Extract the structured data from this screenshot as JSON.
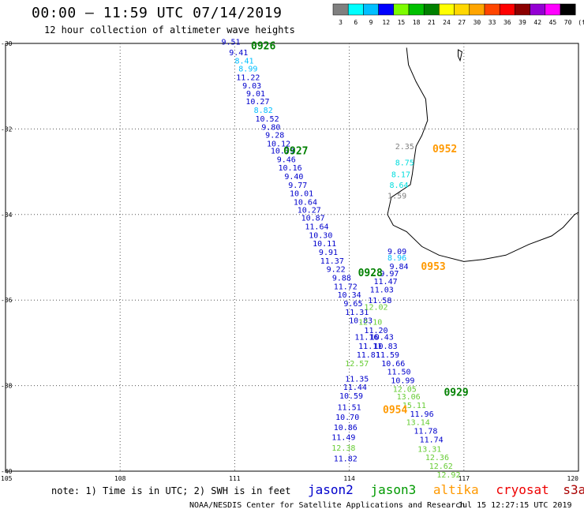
{
  "header": {
    "title": "00:00 – 11:59 UTC 07/14/2019",
    "subtitle": "12 hour collection of altimeter wave heights"
  },
  "scale": {
    "unit": "(ft)",
    "ticks": [
      "3",
      "6",
      "9",
      "12",
      "15",
      "18",
      "21",
      "24",
      "27",
      "30",
      "33",
      "36",
      "39",
      "42",
      "45",
      "70"
    ],
    "colors": [
      "#808080",
      "#00ffff",
      "#00bfff",
      "#0000ff",
      "#7cfc00",
      "#00c000",
      "#008000",
      "#ffff00",
      "#ffd700",
      "#ffa500",
      "#ff4500",
      "#ff0000",
      "#8b0000",
      "#9400d3",
      "#ff00ff",
      "#000000"
    ]
  },
  "axes": {
    "x_ticks": [
      "105",
      "108",
      "111",
      "114",
      "117",
      "120"
    ],
    "y_ticks": [
      "-30",
      "-32",
      "-34",
      "-36",
      "-38",
      "-40"
    ]
  },
  "footer": {
    "note": "note: 1) Time is in UTC; 2) SWH is in feet",
    "credit": "NOAA/NESDIS Center for Satellite Applications and Research",
    "timestamp": "Jul 15 12:27:15 UTC 2019"
  },
  "satellites": [
    {
      "name": "jason2",
      "color": "#0000cc"
    },
    {
      "name": "jason3",
      "color": "#009900"
    },
    {
      "name": "altika",
      "color": "#ff9900"
    },
    {
      "name": "cryosat",
      "color": "#ee0000"
    },
    {
      "name": "s3a",
      "color": "#aa0000"
    }
  ],
  "time_labels": [
    {
      "text": "0926",
      "lon": 111.75,
      "lat": -30.05,
      "color": "#008000"
    },
    {
      "text": "0927",
      "lon": 112.6,
      "lat": -32.5,
      "color": "#008000"
    },
    {
      "text": "0952",
      "lon": 116.5,
      "lat": -32.45,
      "color": "#ff9900"
    },
    {
      "text": "0928",
      "lon": 114.55,
      "lat": -35.35,
      "color": "#008000"
    },
    {
      "text": "0953",
      "lon": 116.2,
      "lat": -35.2,
      "color": "#ff9900"
    },
    {
      "text": "0929",
      "lon": 116.8,
      "lat": -38.15,
      "color": "#008000"
    },
    {
      "text": "0954",
      "lon": 115.2,
      "lat": -38.55,
      "color": "#ff9900"
    }
  ],
  "map_data": {
    "extent": {
      "lon": [
        105,
        120
      ],
      "lat": [
        -40,
        -30
      ]
    },
    "observations": [
      {
        "lon": 110.9,
        "lat": -29.95,
        "v": "9.51",
        "c": "#0000cc"
      },
      {
        "lon": 111.1,
        "lat": -30.2,
        "v": "9.41",
        "c": "#0000cc"
      },
      {
        "lon": 111.25,
        "lat": -30.4,
        "v": "8.41",
        "c": "#00bfff"
      },
      {
        "lon": 111.35,
        "lat": -30.58,
        "v": "8.99",
        "c": "#00bfff"
      },
      {
        "lon": 111.35,
        "lat": -30.78,
        "v": "11.22",
        "c": "#0000cc"
      },
      {
        "lon": 111.45,
        "lat": -30.98,
        "v": "9.03",
        "c": "#0000cc"
      },
      {
        "lon": 111.55,
        "lat": -31.16,
        "v": "9.01",
        "c": "#0000cc"
      },
      {
        "lon": 111.6,
        "lat": -31.35,
        "v": "10.27",
        "c": "#0000cc"
      },
      {
        "lon": 111.75,
        "lat": -31.55,
        "v": "8.82",
        "c": "#00bfff"
      },
      {
        "lon": 111.85,
        "lat": -31.75,
        "v": "10.52",
        "c": "#0000cc"
      },
      {
        "lon": 111.95,
        "lat": -31.95,
        "v": "9.80",
        "c": "#0000cc"
      },
      {
        "lon": 112.05,
        "lat": -32.13,
        "v": "9.28",
        "c": "#0000cc"
      },
      {
        "lon": 112.15,
        "lat": -32.33,
        "v": "10.12",
        "c": "#0000cc"
      },
      {
        "lon": 112.25,
        "lat": -32.5,
        "v": "10.79",
        "c": "#0000cc"
      },
      {
        "lon": 112.35,
        "lat": -32.7,
        "v": "9.46",
        "c": "#0000cc"
      },
      {
        "lon": 112.45,
        "lat": -32.9,
        "v": "10.16",
        "c": "#0000cc"
      },
      {
        "lon": 112.55,
        "lat": -33.1,
        "v": "9.40",
        "c": "#0000cc"
      },
      {
        "lon": 112.65,
        "lat": -33.3,
        "v": "9.77",
        "c": "#0000cc"
      },
      {
        "lon": 112.75,
        "lat": -33.5,
        "v": "10.01",
        "c": "#0000cc"
      },
      {
        "lon": 112.85,
        "lat": -33.7,
        "v": "10.64",
        "c": "#0000cc"
      },
      {
        "lon": 112.95,
        "lat": -33.88,
        "v": "10.27",
        "c": "#0000cc"
      },
      {
        "lon": 113.05,
        "lat": -34.07,
        "v": "10.87",
        "c": "#0000cc"
      },
      {
        "lon": 113.15,
        "lat": -34.27,
        "v": "11.64",
        "c": "#0000cc"
      },
      {
        "lon": 113.25,
        "lat": -34.47,
        "v": "10.30",
        "c": "#0000cc"
      },
      {
        "lon": 113.35,
        "lat": -34.67,
        "v": "10.11",
        "c": "#0000cc"
      },
      {
        "lon": 113.45,
        "lat": -34.87,
        "v": "9.91",
        "c": "#0000cc"
      },
      {
        "lon": 113.55,
        "lat": -35.07,
        "v": "11.37",
        "c": "#0000cc"
      },
      {
        "lon": 113.65,
        "lat": -35.27,
        "v": "9.22",
        "c": "#0000cc"
      },
      {
        "lon": 113.8,
        "lat": -35.47,
        "v": "9.88",
        "c": "#0000cc"
      },
      {
        "lon": 113.9,
        "lat": -35.67,
        "v": "11.72",
        "c": "#0000cc"
      },
      {
        "lon": 114.0,
        "lat": -35.87,
        "v": "10.34",
        "c": "#0000cc"
      },
      {
        "lon": 114.1,
        "lat": -36.07,
        "v": "9.65",
        "c": "#0000cc"
      },
      {
        "lon": 114.2,
        "lat": -36.27,
        "v": "11.31",
        "c": "#0000cc"
      },
      {
        "lon": 114.3,
        "lat": -36.47,
        "v": "10.83",
        "c": "#0000cc"
      },
      {
        "lon": 114.45,
        "lat": -36.85,
        "v": "11.16",
        "c": "#0000cc"
      },
      {
        "lon": 114.55,
        "lat": -37.07,
        "v": "11.11",
        "c": "#0000cc"
      },
      {
        "lon": 114.5,
        "lat": -37.27,
        "v": "11.81",
        "c": "#0000cc"
      },
      {
        "lon": 114.2,
        "lat": -37.47,
        "v": "12.57",
        "c": "#66cc33"
      },
      {
        "lon": 114.2,
        "lat": -37.83,
        "v": "11.35",
        "c": "#0000cc"
      },
      {
        "lon": 114.15,
        "lat": -38.03,
        "v": "11.44",
        "c": "#0000cc"
      },
      {
        "lon": 114.05,
        "lat": -38.23,
        "v": "10.59",
        "c": "#0000cc"
      },
      {
        "lon": 114.0,
        "lat": -38.5,
        "v": "11.51",
        "c": "#0000cc"
      },
      {
        "lon": 113.95,
        "lat": -38.73,
        "v": "10.70",
        "c": "#0000cc"
      },
      {
        "lon": 113.9,
        "lat": -38.97,
        "v": "10.86",
        "c": "#0000cc"
      },
      {
        "lon": 113.85,
        "lat": -39.2,
        "v": "11.49",
        "c": "#0000cc"
      },
      {
        "lon": 113.85,
        "lat": -39.45,
        "v": "12.38",
        "c": "#66cc33"
      },
      {
        "lon": 113.9,
        "lat": -39.7,
        "v": "11.82",
        "c": "#0000cc"
      },
      {
        "lon": 115.25,
        "lat": -34.85,
        "v": "9.09",
        "c": "#0000cc"
      },
      {
        "lon": 115.25,
        "lat": -35.0,
        "v": "8.96",
        "c": "#00bfff"
      },
      {
        "lon": 115.3,
        "lat": -35.2,
        "v": "9.84",
        "c": "#0000cc"
      },
      {
        "lon": 115.05,
        "lat": -35.37,
        "v": "9.97",
        "c": "#0000cc"
      },
      {
        "lon": 114.95,
        "lat": -35.55,
        "v": "11.47",
        "c": "#0000cc"
      },
      {
        "lon": 114.85,
        "lat": -35.75,
        "v": "11.03",
        "c": "#0000cc"
      },
      {
        "lon": 114.8,
        "lat": -36.0,
        "v": "11.58",
        "c": "#0000cc"
      },
      {
        "lon": 114.7,
        "lat": -36.15,
        "v": "12.02",
        "c": "#66cc33"
      },
      {
        "lon": 114.55,
        "lat": -36.5,
        "v": "12.10",
        "c": "#66cc33"
      },
      {
        "lon": 114.7,
        "lat": -36.7,
        "v": "11.20",
        "c": "#0000cc"
      },
      {
        "lon": 114.85,
        "lat": -36.85,
        "v": "10.43",
        "c": "#0000cc"
      },
      {
        "lon": 114.95,
        "lat": -37.07,
        "v": "10.83",
        "c": "#0000cc"
      },
      {
        "lon": 115.0,
        "lat": -37.27,
        "v": "11.59",
        "c": "#0000cc"
      },
      {
        "lon": 115.15,
        "lat": -37.47,
        "v": "10.66",
        "c": "#0000cc"
      },
      {
        "lon": 115.3,
        "lat": -37.67,
        "v": "11.50",
        "c": "#0000cc"
      },
      {
        "lon": 115.4,
        "lat": -37.87,
        "v": "10.99",
        "c": "#0000cc"
      },
      {
        "lon": 115.45,
        "lat": -38.07,
        "v": "12.05",
        "c": "#66cc33"
      },
      {
        "lon": 115.55,
        "lat": -38.25,
        "v": "13.06",
        "c": "#66cc33"
      },
      {
        "lon": 115.7,
        "lat": -38.45,
        "v": "15.11",
        "c": "#66cc33"
      },
      {
        "lon": 115.9,
        "lat": -38.65,
        "v": "11.96",
        "c": "#0000cc"
      },
      {
        "lon": 115.8,
        "lat": -38.85,
        "v": "13.14",
        "c": "#66cc33"
      },
      {
        "lon": 116.0,
        "lat": -39.05,
        "v": "11.78",
        "c": "#0000cc"
      },
      {
        "lon": 116.15,
        "lat": -39.25,
        "v": "11.74",
        "c": "#0000cc"
      },
      {
        "lon": 116.1,
        "lat": -39.47,
        "v": "13.31",
        "c": "#66cc33"
      },
      {
        "lon": 116.3,
        "lat": -39.67,
        "v": "12.36",
        "c": "#66cc33"
      },
      {
        "lon": 116.4,
        "lat": -39.87,
        "v": "12.62",
        "c": "#66cc33"
      },
      {
        "lon": 116.6,
        "lat": -40.07,
        "v": "12.92",
        "c": "#66cc33"
      },
      {
        "lon": 115.45,
        "lat": -32.4,
        "v": "2.35",
        "c": "#808080"
      },
      {
        "lon": 115.45,
        "lat": -32.78,
        "v": "8.75",
        "c": "#00dddd"
      },
      {
        "lon": 115.35,
        "lat": -33.05,
        "v": "8.17",
        "c": "#00dddd"
      },
      {
        "lon": 115.3,
        "lat": -33.3,
        "v": "8.64",
        "c": "#00dddd"
      },
      {
        "lon": 115.25,
        "lat": -33.55,
        "v": "1.59",
        "c": "#808080"
      }
    ],
    "coastline": [
      [
        115.5,
        -30.1
      ],
      [
        115.55,
        -30.5
      ],
      [
        115.75,
        -30.9
      ],
      [
        116.0,
        -31.3
      ],
      [
        116.05,
        -31.8
      ],
      [
        115.9,
        -32.15
      ],
      [
        115.75,
        -32.4
      ],
      [
        115.7,
        -32.7
      ],
      [
        115.65,
        -33.05
      ],
      [
        115.6,
        -33.3
      ],
      [
        115.1,
        -33.6
      ],
      [
        115.0,
        -34.0
      ],
      [
        115.15,
        -34.25
      ],
      [
        115.5,
        -34.4
      ],
      [
        115.9,
        -34.75
      ],
      [
        116.35,
        -34.95
      ],
      [
        117.0,
        -35.1
      ],
      [
        117.5,
        -35.05
      ],
      [
        118.1,
        -34.95
      ],
      [
        118.7,
        -34.7
      ],
      [
        119.3,
        -34.5
      ],
      [
        119.6,
        -34.3
      ],
      [
        119.9,
        -34.0
      ],
      [
        120.0,
        -33.95
      ]
    ],
    "island": [
      [
        116.85,
        -30.15
      ],
      [
        116.95,
        -30.2
      ],
      [
        116.9,
        -30.4
      ],
      [
        116.85,
        -30.3
      ]
    ]
  }
}
